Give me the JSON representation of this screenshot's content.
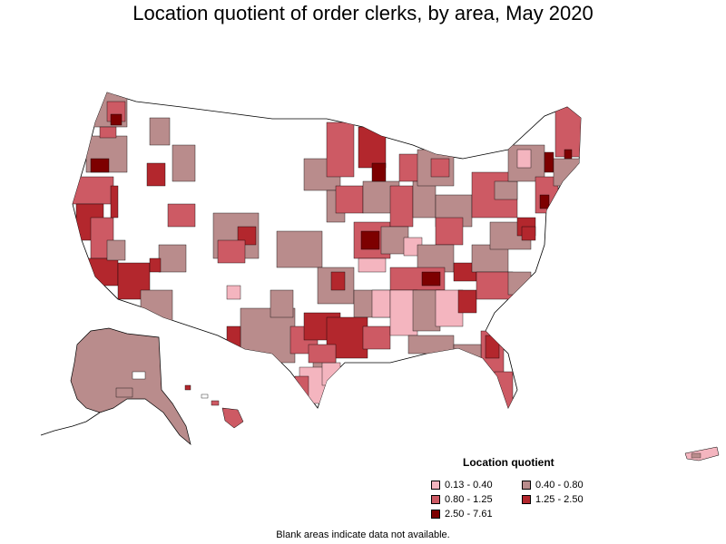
{
  "title": "Location quotient of order clerks, by area, May 2020",
  "legend": {
    "title": "Location quotient",
    "items": [
      {
        "label": "0.13 - 0.40",
        "color": "#f4b5bf"
      },
      {
        "label": "0.40 - 0.80",
        "color": "#b98c8c"
      },
      {
        "label": "0.80 - 1.25",
        "color": "#cd5a64"
      },
      {
        "label": "1.25 - 2.50",
        "color": "#b3272d"
      },
      {
        "label": "2.50 - 7.61",
        "color": "#7d0000"
      }
    ]
  },
  "note": "Blank areas indicate data not available."
}
